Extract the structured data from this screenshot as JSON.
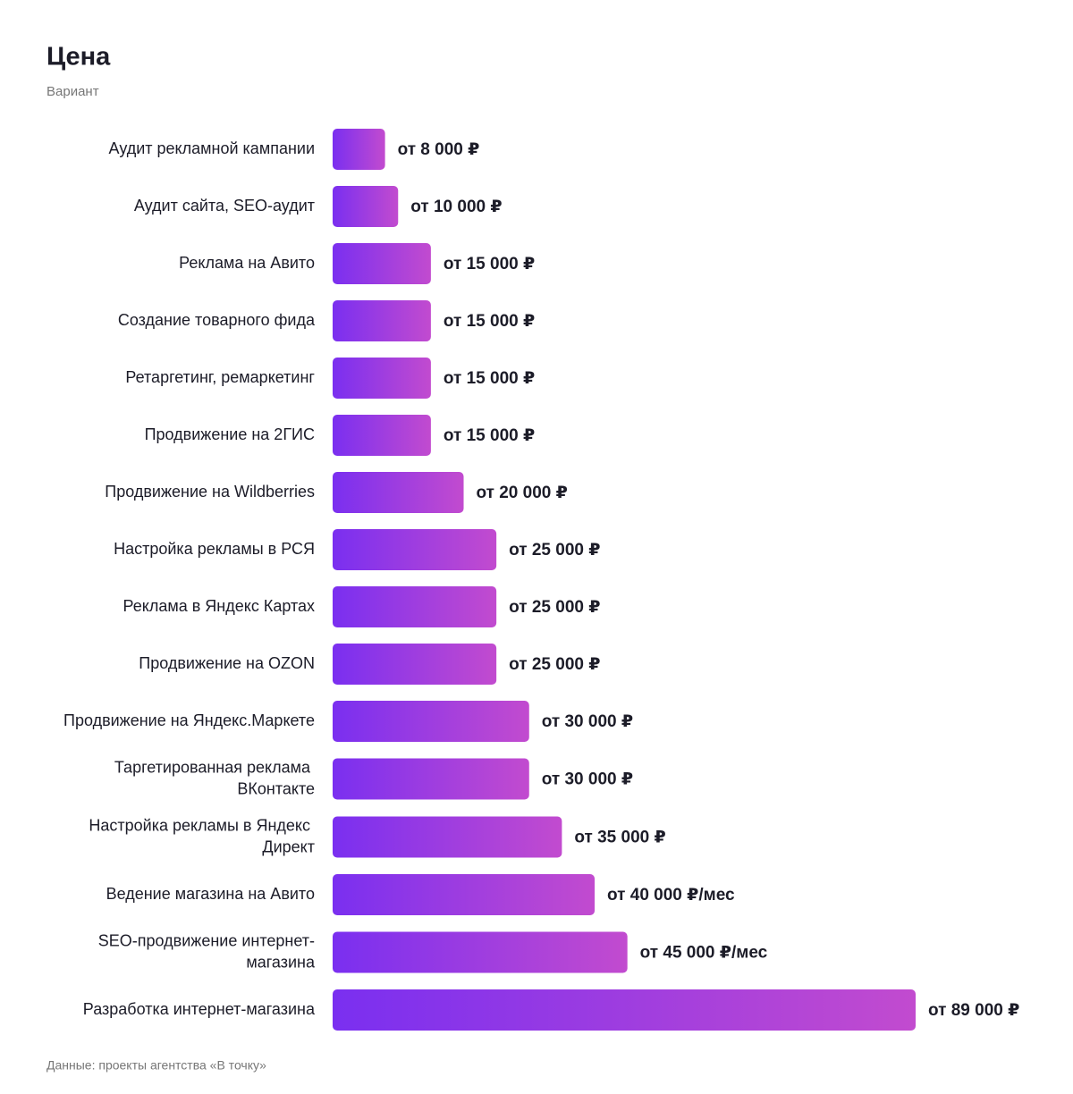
{
  "chart_data": {
    "type": "bar",
    "orientation": "horizontal",
    "title": "Цена",
    "subtitle": "Вариант",
    "categories": [
      "Аудит рекламной кампании",
      "Аудит сайта, SEO-аудит",
      "Реклама на Авито",
      "Создание товарного фида",
      "Ретаргетинг, ремаркетинг",
      "Продвижение на 2ГИС",
      "Продвижение на Wildberries",
      "Настройка рекламы в РСЯ",
      "Реклама в Яндекс Картах",
      "Продвижение на OZON",
      "Продвижение на Яндекс.Маркете",
      "Таргетированная реклама ВКонтакте",
      "Настройка рекламы в Яндекс Директ",
      "Ведение магазина на Авито",
      "SEO-продвижение интернет-магазина",
      "Разработка интернет-магазина"
    ],
    "values": [
      8000,
      10000,
      15000,
      15000,
      15000,
      15000,
      20000,
      25000,
      25000,
      25000,
      30000,
      30000,
      35000,
      40000,
      45000,
      89000
    ],
    "value_labels": [
      "от 8 000 ₽",
      "от 10 000 ₽",
      "от 15 000 ₽",
      "от 15 000 ₽",
      "от 15 000 ₽",
      "от 15 000 ₽",
      "от 20 000 ₽",
      "от 25 000 ₽",
      "от 25 000 ₽",
      "от 25 000 ₽",
      "от 30 000 ₽",
      "от 30 000 ₽",
      "от 35 000 ₽",
      "от 40 000 ₽/мес",
      "от 45 000 ₽/мес",
      "от 89 000 ₽"
    ],
    "xlim": [
      0,
      89000
    ],
    "gradient": [
      "#7a2ff0",
      "#c24bcf"
    ],
    "source": "Данные: проекты агентства «В точку»"
  }
}
